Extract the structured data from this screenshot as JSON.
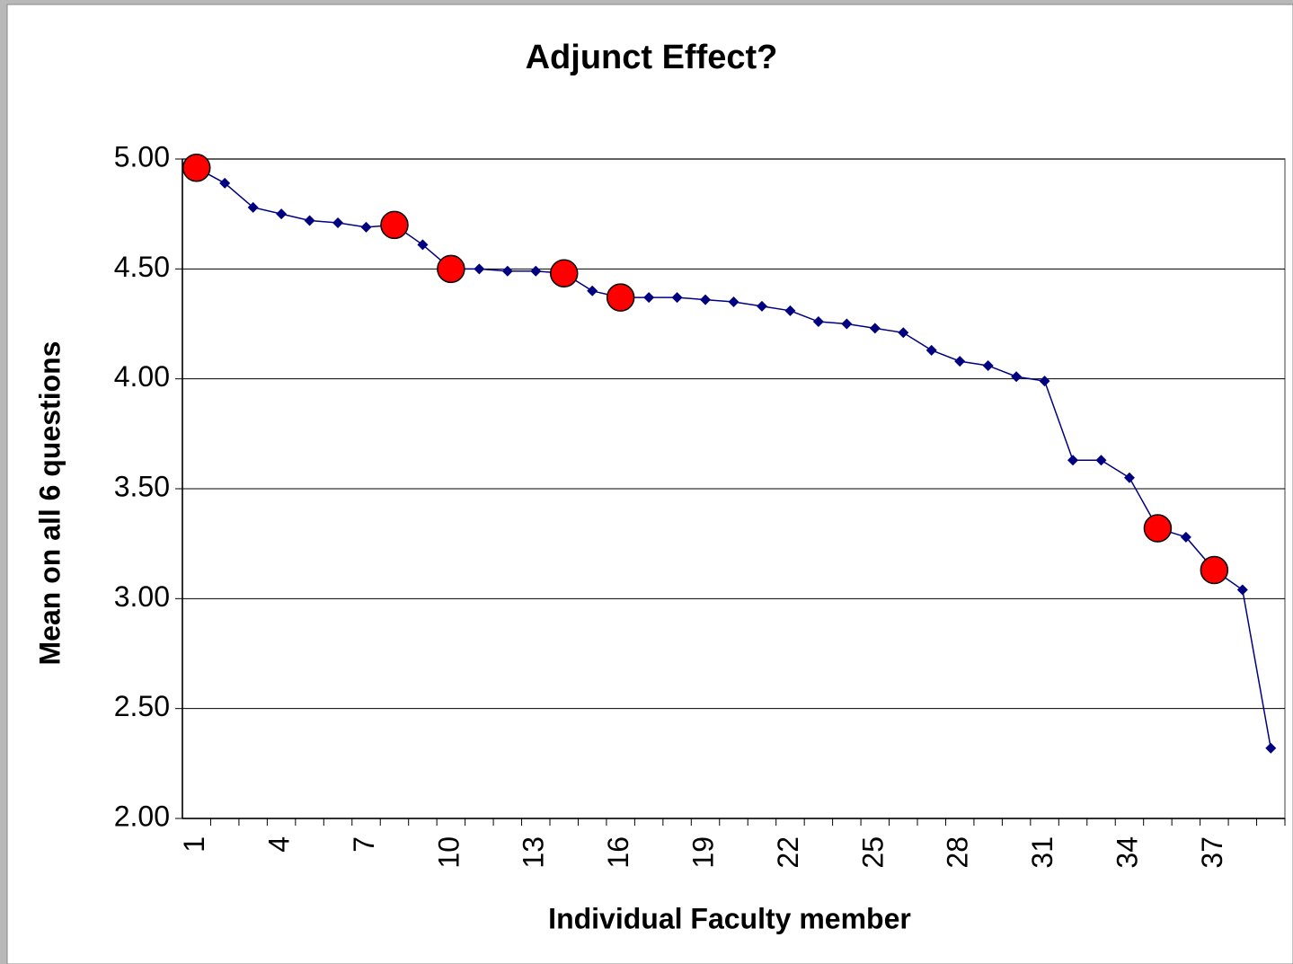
{
  "chart_data": {
    "type": "line",
    "title": "Adjunct Effect?",
    "xlabel": "Individual Faculty member",
    "ylabel": "Mean on all 6 questions",
    "categories": [
      "1",
      null,
      null,
      "4",
      null,
      null,
      "7",
      null,
      null,
      "10",
      null,
      null,
      "13",
      null,
      null,
      "16",
      null,
      null,
      "19",
      null,
      null,
      "22",
      null,
      null,
      "25",
      null,
      null,
      "28",
      null,
      null,
      "31",
      null,
      null,
      "34",
      null,
      null,
      "37",
      null,
      null
    ],
    "series": [
      {
        "color": "#000080",
        "marker": "diamond",
        "line": true,
        "values": [
          4.96,
          4.89,
          4.78,
          4.75,
          4.72,
          4.71,
          4.69,
          4.7,
          4.61,
          4.5,
          4.5,
          4.49,
          4.49,
          4.48,
          4.4,
          4.37,
          4.37,
          4.37,
          4.36,
          4.35,
          4.33,
          4.31,
          4.26,
          4.25,
          4.23,
          4.21,
          4.13,
          4.08,
          4.06,
          4.01,
          3.99,
          3.63,
          3.63,
          3.55,
          3.32,
          3.28,
          3.13,
          3.04,
          2.32
        ]
      },
      {
        "color": "#ff0000",
        "marker": "circle",
        "line": false,
        "values": [
          4.96,
          null,
          null,
          null,
          null,
          null,
          null,
          4.7,
          null,
          4.5,
          null,
          null,
          null,
          4.48,
          null,
          4.37,
          null,
          null,
          null,
          null,
          null,
          null,
          null,
          null,
          null,
          null,
          null,
          null,
          null,
          null,
          null,
          null,
          null,
          null,
          3.32,
          null,
          3.13,
          null,
          null
        ]
      }
    ],
    "ylim": [
      2,
      5
    ],
    "yticks": [
      {
        "value": 2,
        "label": "2.00"
      },
      {
        "value": 2.5,
        "label": "2.50"
      },
      {
        "value": 3,
        "label": "3.00"
      },
      {
        "value": 3.5,
        "label": "3.50"
      },
      {
        "value": 4,
        "label": "4.00"
      },
      {
        "value": 4.5,
        "label": "4.50"
      },
      {
        "value": 5,
        "label": "5.00"
      }
    ],
    "grid": true
  }
}
